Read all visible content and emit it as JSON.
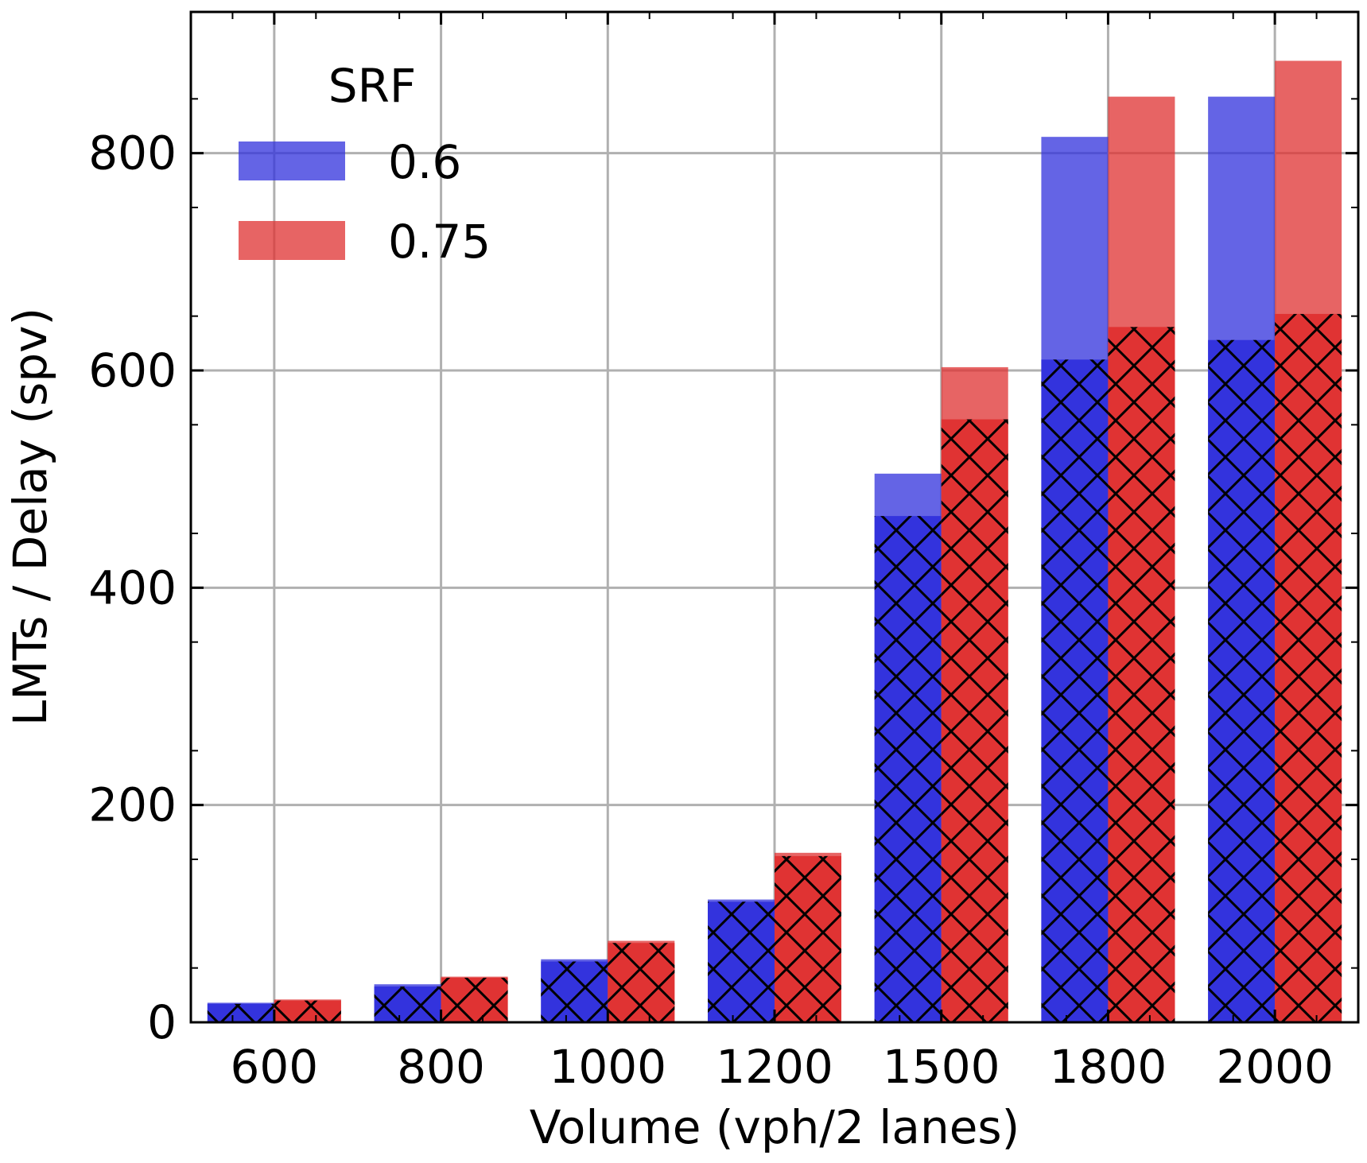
{
  "chart_data": {
    "type": "bar",
    "xlabel": "Volume (vph/2 lanes)",
    "ylabel": "LMTs / Delay (spv)",
    "categories": [
      "600",
      "800",
      "1000",
      "1200",
      "1500",
      "1800",
      "2000"
    ],
    "ylim": [
      0,
      930
    ],
    "yticks": [
      "0",
      "200",
      "400",
      "600",
      "800"
    ],
    "grid": true,
    "legend": {
      "title": "SRF",
      "position": "top-left"
    },
    "series": [
      {
        "name": "0.6",
        "color": "#3333dd",
        "values": [
          18,
          35,
          58,
          113,
          505,
          815,
          852
        ],
        "hatched_values": [
          17,
          33,
          56,
          111,
          466,
          610,
          628
        ]
      },
      {
        "name": "0.75",
        "color": "#e03333",
        "values": [
          21,
          42,
          75,
          156,
          603,
          852,
          885
        ],
        "hatched_values": [
          20,
          41,
          73,
          153,
          555,
          640,
          652
        ]
      }
    ]
  }
}
